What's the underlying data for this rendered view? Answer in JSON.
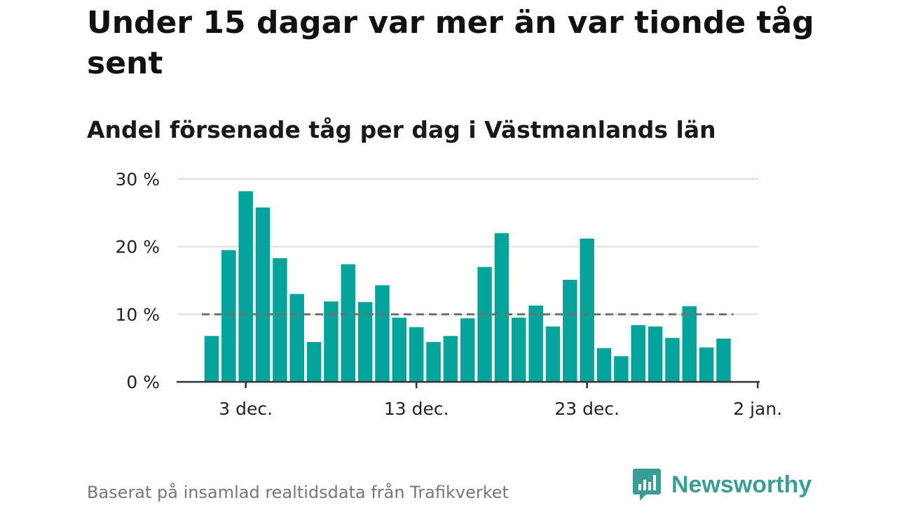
{
  "title": "Under 15 dagar var mer än var tionde tåg sent",
  "subtitle": "Andel försenade tåg per dag i Västmanlands län",
  "footer": "Baserat på insamlad realtidsdata från Trafikverket",
  "brand": {
    "name": "Newsworthy",
    "color": "#3a9e95",
    "icon": "newsworthy-logo-icon"
  },
  "colors": {
    "bar": "#05a39a",
    "grid": "#dddddd",
    "reference": "#707070",
    "axis": "#333333"
  },
  "chart_data": {
    "type": "bar",
    "x": [
      "2021-12-01",
      "2021-12-02",
      "2021-12-03",
      "2021-12-04",
      "2021-12-05",
      "2021-12-06",
      "2021-12-07",
      "2021-12-08",
      "2021-12-09",
      "2021-12-10",
      "2021-12-11",
      "2021-12-12",
      "2021-12-13",
      "2021-12-14",
      "2021-12-15",
      "2021-12-16",
      "2021-12-17",
      "2021-12-18",
      "2021-12-19",
      "2021-12-20",
      "2021-12-21",
      "2021-12-22",
      "2021-12-23",
      "2021-12-24",
      "2021-12-25",
      "2021-12-26",
      "2021-12-27",
      "2021-12-28",
      "2021-12-29",
      "2021-12-30",
      "2021-12-31"
    ],
    "values": [
      6.8,
      19.5,
      28.2,
      25.8,
      18.3,
      13.0,
      5.9,
      11.9,
      17.4,
      11.8,
      14.3,
      9.5,
      8.1,
      5.9,
      6.8,
      9.4,
      17.0,
      22.0,
      9.5,
      11.3,
      8.2,
      15.1,
      21.2,
      5.0,
      3.8,
      8.4,
      8.2,
      6.5,
      11.2,
      5.1,
      6.4
    ],
    "reference_line": 10,
    "ylim": [
      0,
      30
    ],
    "yticks": [
      0,
      10,
      20,
      30
    ],
    "ytick_labels": [
      "0 %",
      "10 %",
      "20 %",
      "30 %"
    ],
    "xticks": [
      "2021-12-03",
      "2021-12-13",
      "2021-12-23",
      "2022-01-02"
    ],
    "xtick_labels": [
      "3 dec.",
      "13 dec.",
      "23 dec.",
      "2 jan."
    ],
    "grid": true
  }
}
